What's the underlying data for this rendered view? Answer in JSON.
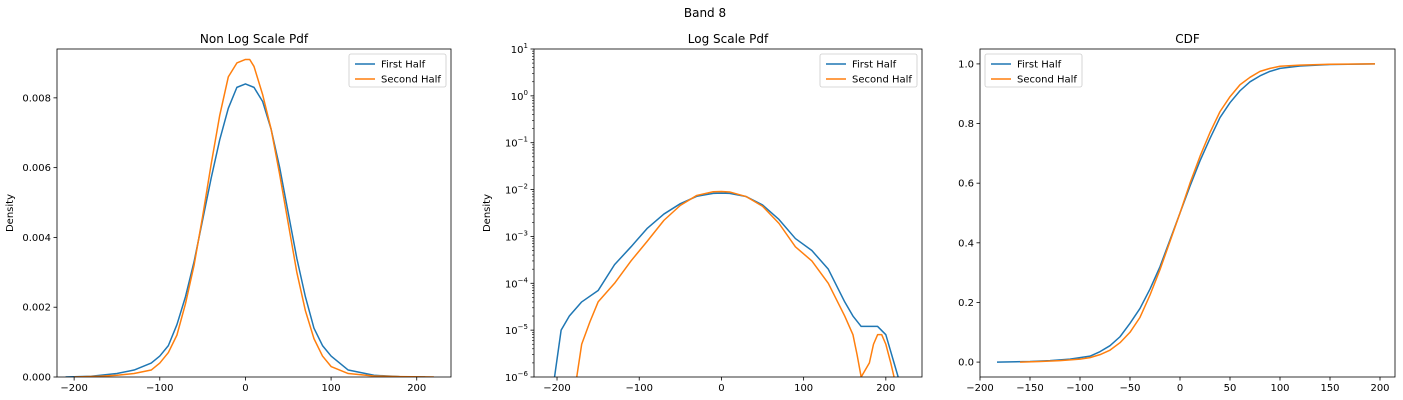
{
  "figure": {
    "suptitle": "Band 8"
  },
  "colors": {
    "first": "#1f77b4",
    "second": "#ff7f0e"
  },
  "chart_data": [
    {
      "type": "line",
      "title": "Non Log Scale Pdf",
      "xlabel": "",
      "ylabel": "Density",
      "xlim": [
        -220,
        240
      ],
      "ylim": [
        0,
        0.0094
      ],
      "xscale": "linear",
      "yscale": "linear",
      "xticks": [
        -200,
        -100,
        0,
        100,
        200
      ],
      "xtick_labels": [
        "−200",
        "−100",
        "0",
        "100",
        "200"
      ],
      "yticks": [
        0,
        0.002,
        0.004,
        0.006,
        0.008
      ],
      "ytick_labels": [
        "0.000",
        "0.002",
        "0.004",
        "0.006",
        "0.008"
      ],
      "legend_loc": "upper-right",
      "series": [
        {
          "name": "First Half",
          "color": "#1f77b4",
          "x": [
            -210,
            -180,
            -150,
            -130,
            -110,
            -100,
            -90,
            -80,
            -70,
            -60,
            -50,
            -40,
            -30,
            -20,
            -10,
            0,
            10,
            20,
            30,
            40,
            50,
            60,
            70,
            80,
            90,
            100,
            120,
            150,
            180,
            210
          ],
          "y": [
            0.0,
            2e-05,
            0.0001,
            0.0002,
            0.0004,
            0.0006,
            0.0009,
            0.0015,
            0.0023,
            0.0033,
            0.0045,
            0.0057,
            0.0068,
            0.0077,
            0.0083,
            0.0084,
            0.0083,
            0.0079,
            0.0071,
            0.006,
            0.0047,
            0.0034,
            0.0023,
            0.0014,
            0.0009,
            0.0006,
            0.0002,
            5e-05,
            1e-05,
            0.0
          ]
        },
        {
          "name": "Second Half",
          "color": "#ff7f0e",
          "x": [
            -200,
            -170,
            -150,
            -130,
            -110,
            -100,
            -90,
            -80,
            -70,
            -60,
            -50,
            -40,
            -30,
            -20,
            -10,
            0,
            5,
            10,
            20,
            30,
            40,
            50,
            60,
            70,
            80,
            90,
            100,
            120,
            150,
            180,
            220
          ],
          "y": [
            0.0,
            2e-05,
            5e-05,
            0.0001,
            0.0002,
            0.0004,
            0.0007,
            0.0012,
            0.0021,
            0.0032,
            0.0046,
            0.0061,
            0.0075,
            0.0086,
            0.009,
            0.0091,
            0.0091,
            0.0089,
            0.0081,
            0.0071,
            0.0058,
            0.0044,
            0.003,
            0.0019,
            0.0011,
            0.0006,
            0.0003,
            0.0001,
            3e-05,
            1e-05,
            0.0
          ]
        }
      ]
    },
    {
      "type": "line",
      "title": "Log Scale Pdf",
      "xlabel": "",
      "ylabel": "Density",
      "xlim": [
        -228,
        244
      ],
      "ylim": [
        1e-06,
        10
      ],
      "xscale": "linear",
      "yscale": "log",
      "xticks": [
        -200,
        -100,
        0,
        100,
        200
      ],
      "xtick_labels": [
        "−200",
        "−100",
        "0",
        "100",
        "200"
      ],
      "yticks": [
        1e-06,
        1e-05,
        0.0001,
        0.001,
        0.01,
        0.1,
        1,
        10
      ],
      "ytick_labels": [
        [
          "10",
          "−6"
        ],
        [
          "10",
          "−5"
        ],
        [
          "10",
          "−4"
        ],
        [
          "10",
          "−3"
        ],
        [
          "10",
          "−2"
        ],
        [
          "10",
          "−1"
        ],
        [
          "10",
          "0"
        ],
        [
          "10",
          "1"
        ]
      ],
      "legend_loc": "upper-right",
      "series": [
        {
          "name": "First Half",
          "color": "#1f77b4",
          "x": [
            -203,
            -195,
            -185,
            -170,
            -150,
            -130,
            -110,
            -90,
            -70,
            -50,
            -30,
            -10,
            0,
            10,
            30,
            50,
            70,
            90,
            110,
            130,
            150,
            160,
            170,
            180,
            190,
            200,
            205,
            210,
            215
          ],
          "y": [
            1e-06,
            1e-05,
            2e-05,
            4e-05,
            7e-05,
            0.00025,
            0.0006,
            0.0015,
            0.003,
            0.005,
            0.0072,
            0.0083,
            0.0084,
            0.0083,
            0.0071,
            0.0047,
            0.0023,
            0.0009,
            0.0005,
            0.0002,
            4e-05,
            2e-05,
            1.2e-05,
            1.2e-05,
            1.2e-05,
            8e-06,
            4e-06,
            2e-06,
            1e-06
          ]
        },
        {
          "name": "Second Half",
          "color": "#ff7f0e",
          "x": [
            -176,
            -170,
            -160,
            -150,
            -130,
            -110,
            -90,
            -70,
            -50,
            -30,
            -10,
            0,
            10,
            30,
            50,
            70,
            90,
            110,
            130,
            150,
            160,
            165,
            170,
            180,
            185,
            190,
            195,
            200,
            206,
            210
          ],
          "y": [
            1e-06,
            5e-06,
            1.5e-05,
            4e-05,
            0.0001,
            0.0003,
            0.0008,
            0.0022,
            0.0046,
            0.0075,
            0.009,
            0.0091,
            0.0089,
            0.0071,
            0.0044,
            0.0019,
            0.0006,
            0.0003,
            0.0001,
            2e-05,
            8e-06,
            3e-06,
            1e-06,
            2e-06,
            5e-06,
            8e-06,
            8e-06,
            5e-06,
            2e-06,
            1e-06
          ]
        }
      ]
    },
    {
      "type": "line",
      "title": "CDF",
      "xlabel": "",
      "ylabel": "",
      "xlim": [
        -200,
        215
      ],
      "ylim": [
        -0.05,
        1.05
      ],
      "xscale": "linear",
      "yscale": "linear",
      "xticks": [
        -200,
        -150,
        -100,
        -50,
        0,
        50,
        100,
        150,
        200
      ],
      "xtick_labels": [
        "−200",
        "−150",
        "−100",
        "−50",
        "0",
        "50",
        "100",
        "150",
        "200"
      ],
      "yticks": [
        0,
        0.2,
        0.4,
        0.6,
        0.8,
        1.0
      ],
      "ytick_labels": [
        "0.0",
        "0.2",
        "0.4",
        "0.6",
        "0.8",
        "1.0"
      ],
      "legend_loc": "upper-left",
      "series": [
        {
          "name": "First Half",
          "color": "#1f77b4",
          "x": [
            -183,
            -150,
            -130,
            -110,
            -100,
            -90,
            -80,
            -70,
            -60,
            -50,
            -40,
            -30,
            -20,
            -10,
            0,
            10,
            20,
            30,
            40,
            50,
            60,
            70,
            80,
            90,
            100,
            120,
            150,
            195
          ],
          "y": [
            0.0,
            0.002,
            0.005,
            0.01,
            0.015,
            0.02,
            0.035,
            0.055,
            0.085,
            0.13,
            0.18,
            0.245,
            0.32,
            0.41,
            0.5,
            0.59,
            0.675,
            0.75,
            0.82,
            0.87,
            0.91,
            0.94,
            0.96,
            0.975,
            0.985,
            0.993,
            0.998,
            1.0
          ]
        },
        {
          "name": "Second Half",
          "color": "#ff7f0e",
          "x": [
            -160,
            -140,
            -120,
            -100,
            -90,
            -80,
            -70,
            -60,
            -50,
            -40,
            -30,
            -20,
            -10,
            0,
            10,
            20,
            30,
            40,
            50,
            60,
            70,
            80,
            90,
            100,
            120,
            150,
            195
          ],
          "y": [
            0.0,
            0.002,
            0.005,
            0.01,
            0.015,
            0.025,
            0.04,
            0.065,
            0.1,
            0.15,
            0.225,
            0.31,
            0.405,
            0.5,
            0.6,
            0.69,
            0.77,
            0.84,
            0.89,
            0.93,
            0.955,
            0.975,
            0.985,
            0.992,
            0.996,
            0.999,
            1.0
          ]
        }
      ]
    }
  ]
}
